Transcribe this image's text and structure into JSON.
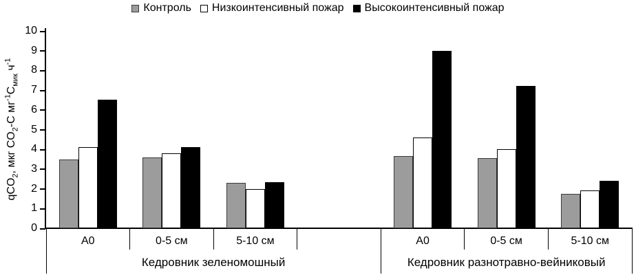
{
  "colors": {
    "background": "#ffffff",
    "axis": "#000000",
    "text": "#000000",
    "control_fill": "#9c9c9c",
    "low_fire_fill": "#ffffff",
    "high_fire_fill": "#000000"
  },
  "chart_data": {
    "type": "bar",
    "title": "",
    "ylabel": "qCO2, мкг CO2-C мг-1Смик ч-1",
    "ylabel_parts": [
      {
        "text": "qCO"
      },
      {
        "text": "2",
        "style": "sub"
      },
      {
        "text": ", мкг CO"
      },
      {
        "text": "2",
        "style": "sub"
      },
      {
        "text": "-C мг"
      },
      {
        "text": "-1",
        "style": "sup"
      },
      {
        "text": "С"
      },
      {
        "text": "мик",
        "style": "sub"
      },
      {
        "text": " ч"
      },
      {
        "text": "-1",
        "style": "sup"
      }
    ],
    "xlabel": "",
    "ylim": [
      0,
      10
    ],
    "yticks": [
      0,
      1,
      2,
      3,
      4,
      5,
      6,
      7,
      8,
      9,
      10
    ],
    "grid": false,
    "legend_position": "top",
    "sections": [
      {
        "label": "Кедровник зеленомошный",
        "categories": [
          "А0",
          "0-5 см",
          "5-10 см"
        ]
      },
      {
        "label": "Кедровник разнотравно-вейниковый",
        "categories": [
          "А0",
          "0-5 см",
          "5-10 см"
        ]
      }
    ],
    "series": [
      {
        "name": "Контроль",
        "fill": "#9c9c9c",
        "border": "#3a3a3a",
        "values_by_section": [
          [
            3.5,
            3.6,
            2.3
          ],
          [
            3.65,
            3.55,
            1.75
          ]
        ]
      },
      {
        "name": "Низкоинтенсивный пожар",
        "fill": "#ffffff",
        "border": "#000000",
        "values_by_section": [
          [
            4.1,
            3.8,
            2.0
          ],
          [
            4.6,
            4.0,
            1.9
          ]
        ]
      },
      {
        "name": "Высокоинтенсивный пожар",
        "fill": "#000000",
        "border": "#000000",
        "values_by_section": [
          [
            6.5,
            4.1,
            2.35
          ],
          [
            9.0,
            7.2,
            2.4
          ]
        ]
      }
    ]
  }
}
